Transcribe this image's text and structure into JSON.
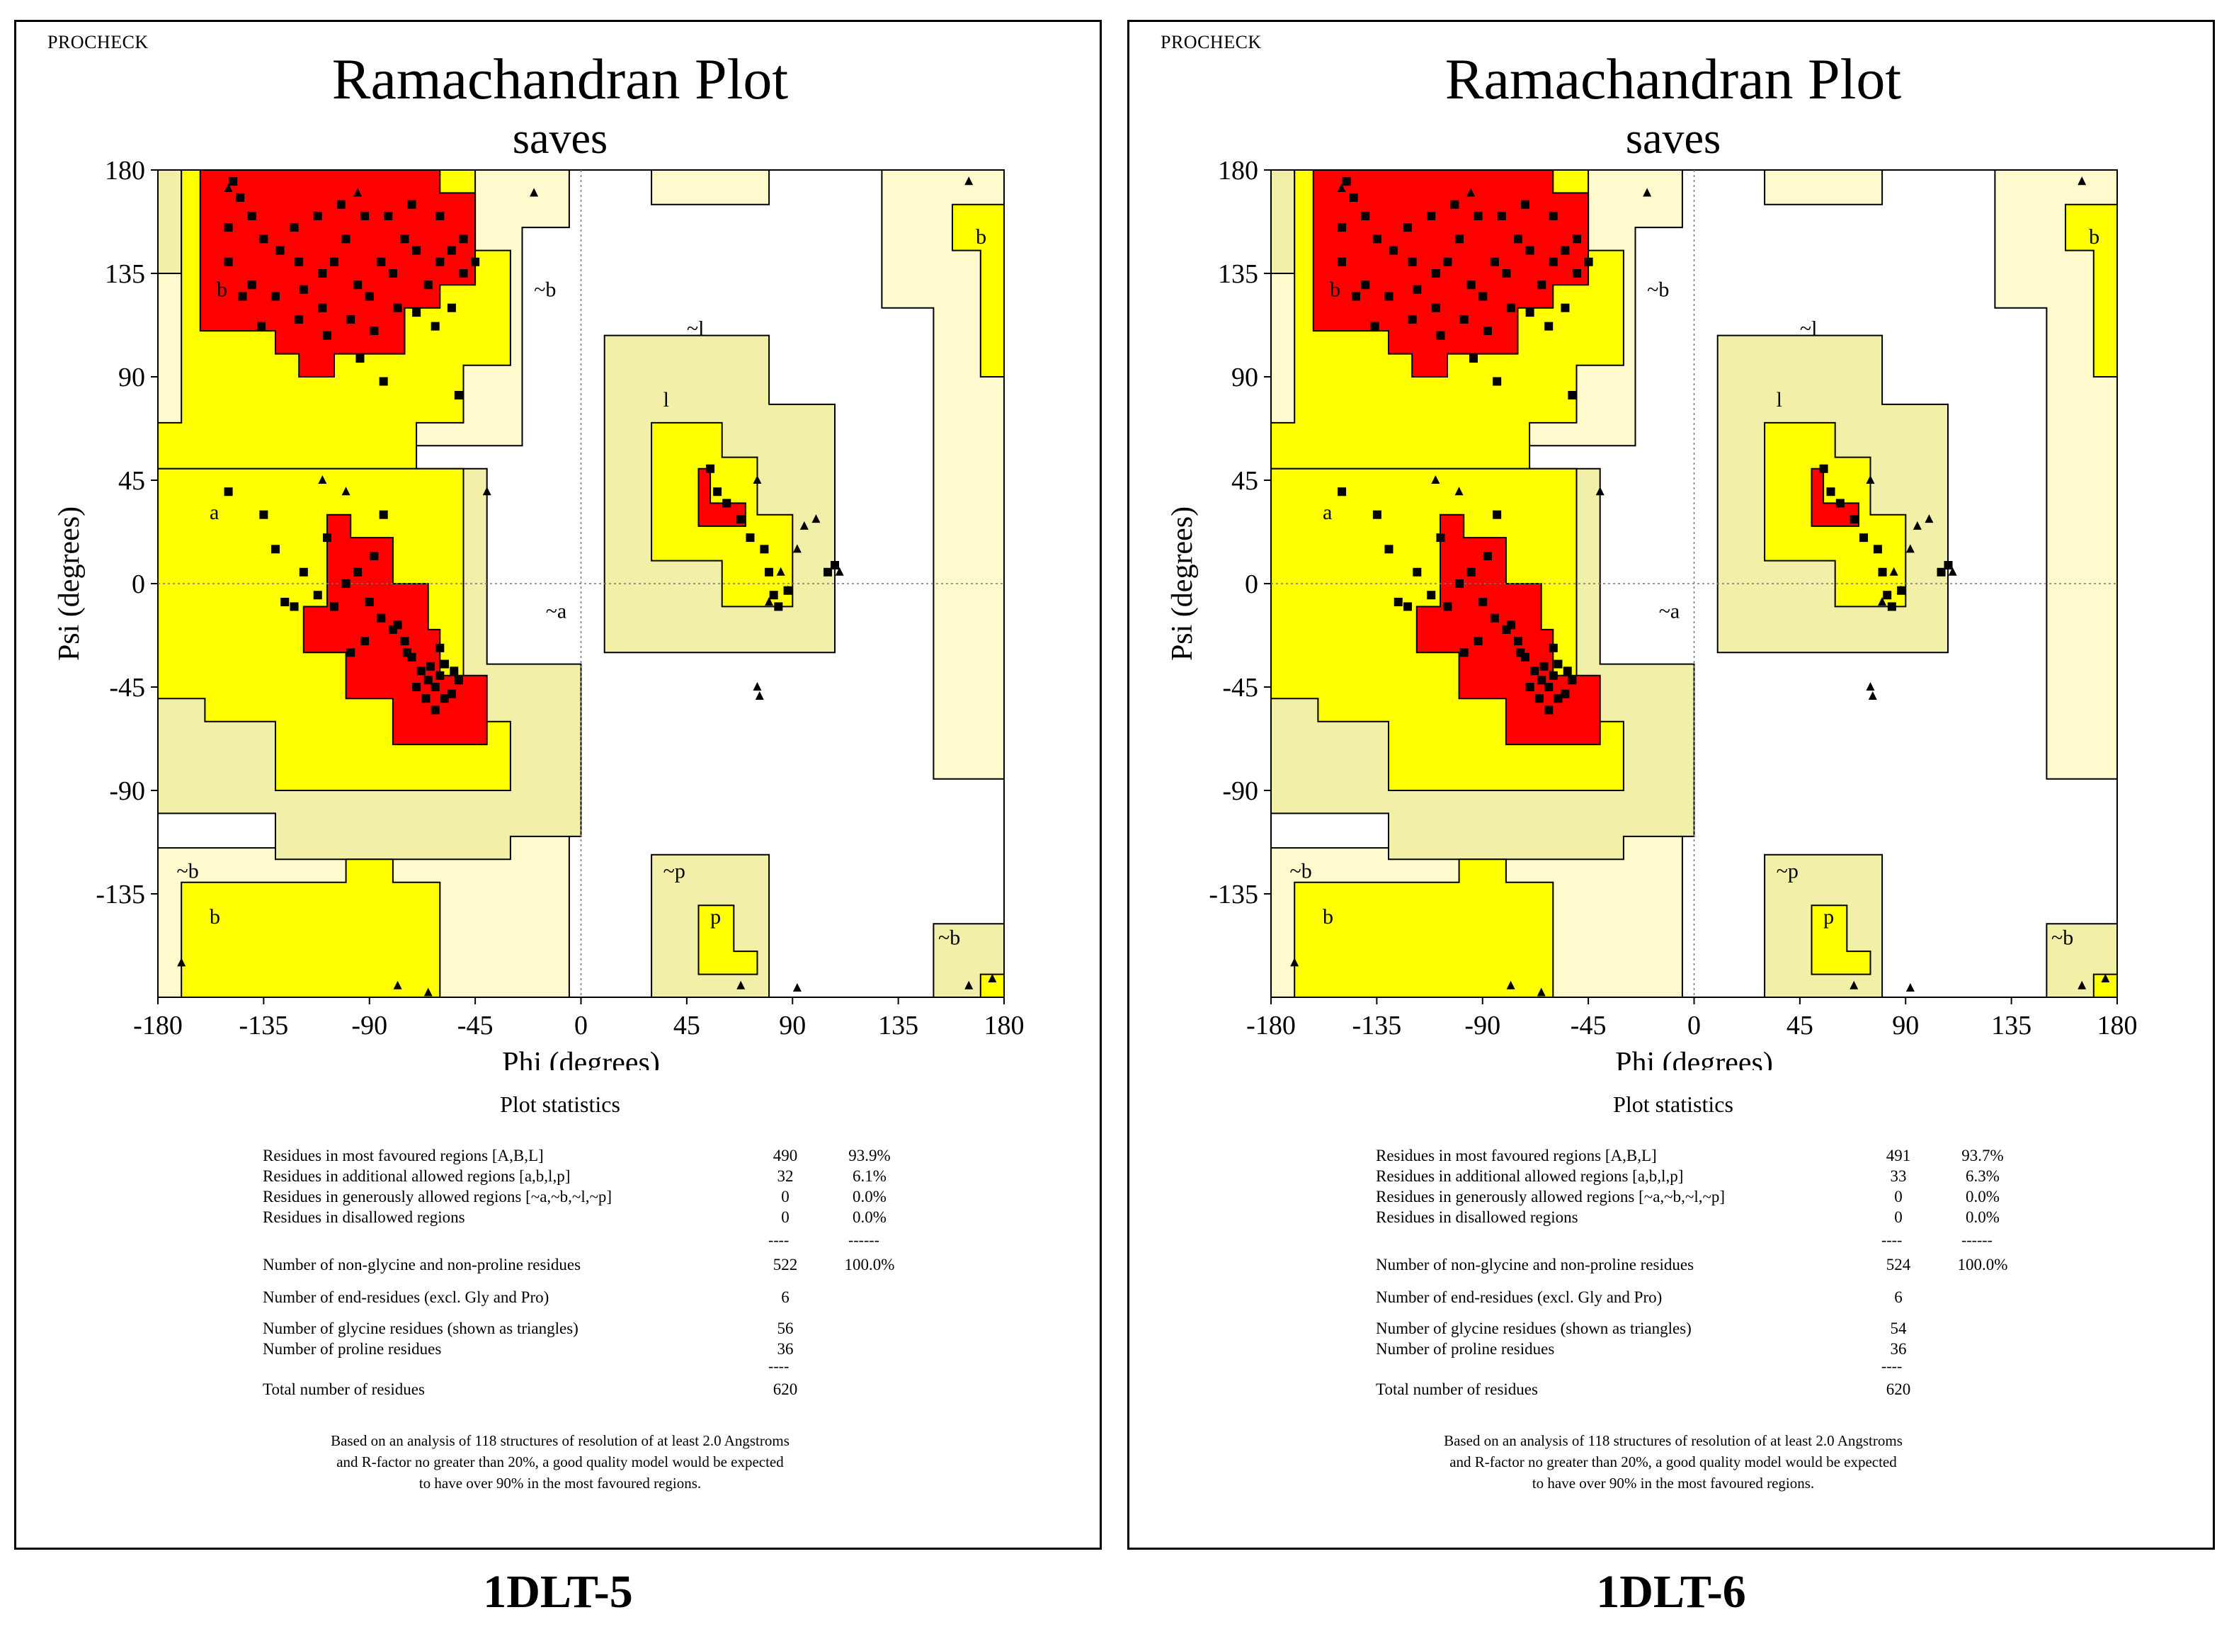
{
  "panels": [
    {
      "brand": "PROCHECK",
      "title": "Ramachandran Plot",
      "subtitle": "saves",
      "caption": "1DLT-5",
      "stats_title": "Plot statistics",
      "stats": [
        {
          "label": "Residues in most favoured regions  [A,B,L]",
          "count": "490",
          "pct": "93.9%"
        },
        {
          "label": "Residues in additional allowed regions  [a,b,l,p]",
          "count": "32",
          "pct": "6.1%"
        },
        {
          "label": "Residues in generously allowed regions  [~a,~b,~l,~p]",
          "count": "0",
          "pct": "0.0%"
        },
        {
          "label": "Residues in disallowed regions",
          "count": "0",
          "pct": "0.0%"
        },
        {
          "label": "Number of non-glycine and non-proline residues",
          "count": "522",
          "pct": "100.0%"
        },
        {
          "label": "Number of end-residues (excl. Gly and Pro)",
          "count": "6",
          "pct": ""
        },
        {
          "label": "Number of glycine residues (shown as triangles)",
          "count": "56",
          "pct": ""
        },
        {
          "label": "Number of proline residues",
          "count": "36",
          "pct": ""
        },
        {
          "label": "Total number of residues",
          "count": "620",
          "pct": ""
        }
      ],
      "note": [
        "Based on an analysis of 118 structures of resolution of at least 2.0 Angstroms",
        "and R-factor no greater than 20%, a good quality model would be expected",
        "to have over 90% in the most favoured regions."
      ]
    },
    {
      "brand": "PROCHECK",
      "title": "Ramachandran Plot",
      "subtitle": "saves",
      "caption": "1DLT-6",
      "stats_title": "Plot statistics",
      "stats": [
        {
          "label": "Residues in most favoured regions  [A,B,L]",
          "count": "491",
          "pct": "93.7%"
        },
        {
          "label": "Residues in additional allowed regions  [a,b,l,p]",
          "count": "33",
          "pct": "6.3%"
        },
        {
          "label": "Residues in generously allowed regions  [~a,~b,~l,~p]",
          "count": "0",
          "pct": "0.0%"
        },
        {
          "label": "Residues in disallowed regions",
          "count": "0",
          "pct": "0.0%"
        },
        {
          "label": "Number of non-glycine and non-proline residues",
          "count": "524",
          "pct": "100.0%"
        },
        {
          "label": "Number of end-residues (excl. Gly and Pro)",
          "count": "6",
          "pct": ""
        },
        {
          "label": "Number of glycine residues (shown as triangles)",
          "count": "54",
          "pct": ""
        },
        {
          "label": "Number of proline residues",
          "count": "36",
          "pct": ""
        },
        {
          "label": "Total number of residues",
          "count": "620",
          "pct": ""
        }
      ],
      "note": [
        "Based on an analysis of 118 structures of resolution of at least 2.0 Angstroms",
        "and R-factor no greater than 20%, a good quality model would be expected",
        "to have over 90% in the most favoured regions."
      ]
    }
  ],
  "chart_data": [
    {
      "type": "scatter",
      "title": "Ramachandran Plot",
      "subtitle": "saves",
      "xlabel": "Phi (degrees)",
      "ylabel": "Psi (degrees)",
      "xlim": [
        -180,
        180
      ],
      "ylim": [
        -180,
        180
      ],
      "xticks": [
        "-180",
        "-135",
        "-90",
        "-45",
        "0",
        "45",
        "90",
        "135",
        "180"
      ],
      "yticks": [
        "180",
        "135",
        "90",
        "45",
        "0",
        "-45",
        "-90",
        "-135"
      ],
      "region_labels": [
        "b",
        "~b",
        "b",
        "~l",
        "l",
        "a",
        "~a",
        "~b",
        "b",
        "~p",
        "p",
        "~b"
      ],
      "colors": {
        "core": "#ff0000",
        "allowed": "#ffff00",
        "generous": "#f2f0a8",
        "generous_outer": "#fffacd"
      },
      "series": [
        {
          "name": "non-glycine residues (squares)",
          "points": [
            [
              -148,
              175
            ],
            [
              -145,
              168
            ],
            [
              -150,
              155
            ],
            [
              -140,
              160
            ],
            [
              -135,
              150
            ],
            [
              -128,
              145
            ],
            [
              -120,
              140
            ],
            [
              -110,
              135
            ],
            [
              -100,
              150
            ],
            [
              -95,
              130
            ],
            [
              -90,
              125
            ],
            [
              -85,
              140
            ],
            [
              -80,
              135
            ],
            [
              -75,
              150
            ],
            [
              -70,
              145
            ],
            [
              -65,
              130
            ],
            [
              -60,
              140
            ],
            [
              -55,
              120
            ],
            [
              -50,
              135
            ],
            [
              -140,
              130
            ],
            [
              -130,
              125
            ],
            [
              -120,
              115
            ],
            [
              -110,
              120
            ],
            [
              -105,
              140
            ],
            [
              -98,
              115
            ],
            [
              -88,
              110
            ],
            [
              -78,
              120
            ],
            [
              -70,
              118
            ],
            [
              -62,
              112
            ],
            [
              -55,
              145
            ],
            [
              -150,
              140
            ],
            [
              -144,
              125
            ],
            [
              -136,
              112
            ],
            [
              -122,
              155
            ],
            [
              -112,
              160
            ],
            [
              -102,
              165
            ],
            [
              -92,
              160
            ],
            [
              -82,
              160
            ],
            [
              -72,
              165
            ],
            [
              -60,
              160
            ],
            [
              -50,
              150
            ],
            [
              -45,
              140
            ],
            [
              -118,
              128
            ],
            [
              -108,
              108
            ],
            [
              -94,
              98
            ],
            [
              -84,
              88
            ],
            [
              -52,
              82
            ],
            [
              -150,
              40
            ],
            [
              -135,
              30
            ],
            [
              -130,
              15
            ],
            [
              -118,
              5
            ],
            [
              -112,
              -5
            ],
            [
              -105,
              -10
            ],
            [
              -100,
              0
            ],
            [
              -95,
              5
            ],
            [
              -90,
              -8
            ],
            [
              -85,
              -15
            ],
            [
              -80,
              -20
            ],
            [
              -75,
              -25
            ],
            [
              -72,
              -32
            ],
            [
              -68,
              -38
            ],
            [
              -65,
              -42
            ],
            [
              -62,
              -45
            ],
            [
              -60,
              -40
            ],
            [
              -58,
              -35
            ],
            [
              -55,
              -48
            ],
            [
              -52,
              -42
            ],
            [
              -70,
              -45
            ],
            [
              -66,
              -50
            ],
            [
              -64,
              -36
            ],
            [
              -74,
              -30
            ],
            [
              -78,
              -18
            ],
            [
              -92,
              -25
            ],
            [
              -98,
              -30
            ],
            [
              -88,
              12
            ],
            [
              -84,
              30
            ],
            [
              -108,
              20
            ],
            [
              -122,
              -10
            ],
            [
              -126,
              -8
            ],
            [
              -60,
              -28
            ],
            [
              -54,
              -38
            ],
            [
              -58,
              -50
            ],
            [
              -62,
              -55
            ],
            [
              55,
              50
            ],
            [
              58,
              40
            ],
            [
              62,
              35
            ],
            [
              68,
              28
            ],
            [
              72,
              20
            ],
            [
              78,
              15
            ],
            [
              80,
              5
            ],
            [
              82,
              -5
            ],
            [
              84,
              -10
            ],
            [
              88,
              -3
            ],
            [
              105,
              5
            ],
            [
              108,
              8
            ]
          ]
        },
        {
          "name": "glycine residues (triangles)",
          "points": [
            [
              -150,
              172
            ],
            [
              -95,
              170
            ],
            [
              -20,
              170
            ],
            [
              165,
              175
            ],
            [
              -40,
              40
            ],
            [
              -110,
              45
            ],
            [
              -100,
              40
            ],
            [
              75,
              45
            ],
            [
              85,
              5
            ],
            [
              80,
              -8
            ],
            [
              88,
              -3
            ],
            [
              92,
              15
            ],
            [
              95,
              25
            ],
            [
              100,
              28
            ],
            [
              110,
              5
            ],
            [
              75,
              -45
            ],
            [
              76,
              -49
            ],
            [
              68,
              -175
            ],
            [
              92,
              -176
            ],
            [
              -170,
              -165
            ],
            [
              -65,
              -178
            ],
            [
              -78,
              -175
            ],
            [
              165,
              -175
            ],
            [
              175,
              -172
            ]
          ]
        }
      ]
    }
  ]
}
